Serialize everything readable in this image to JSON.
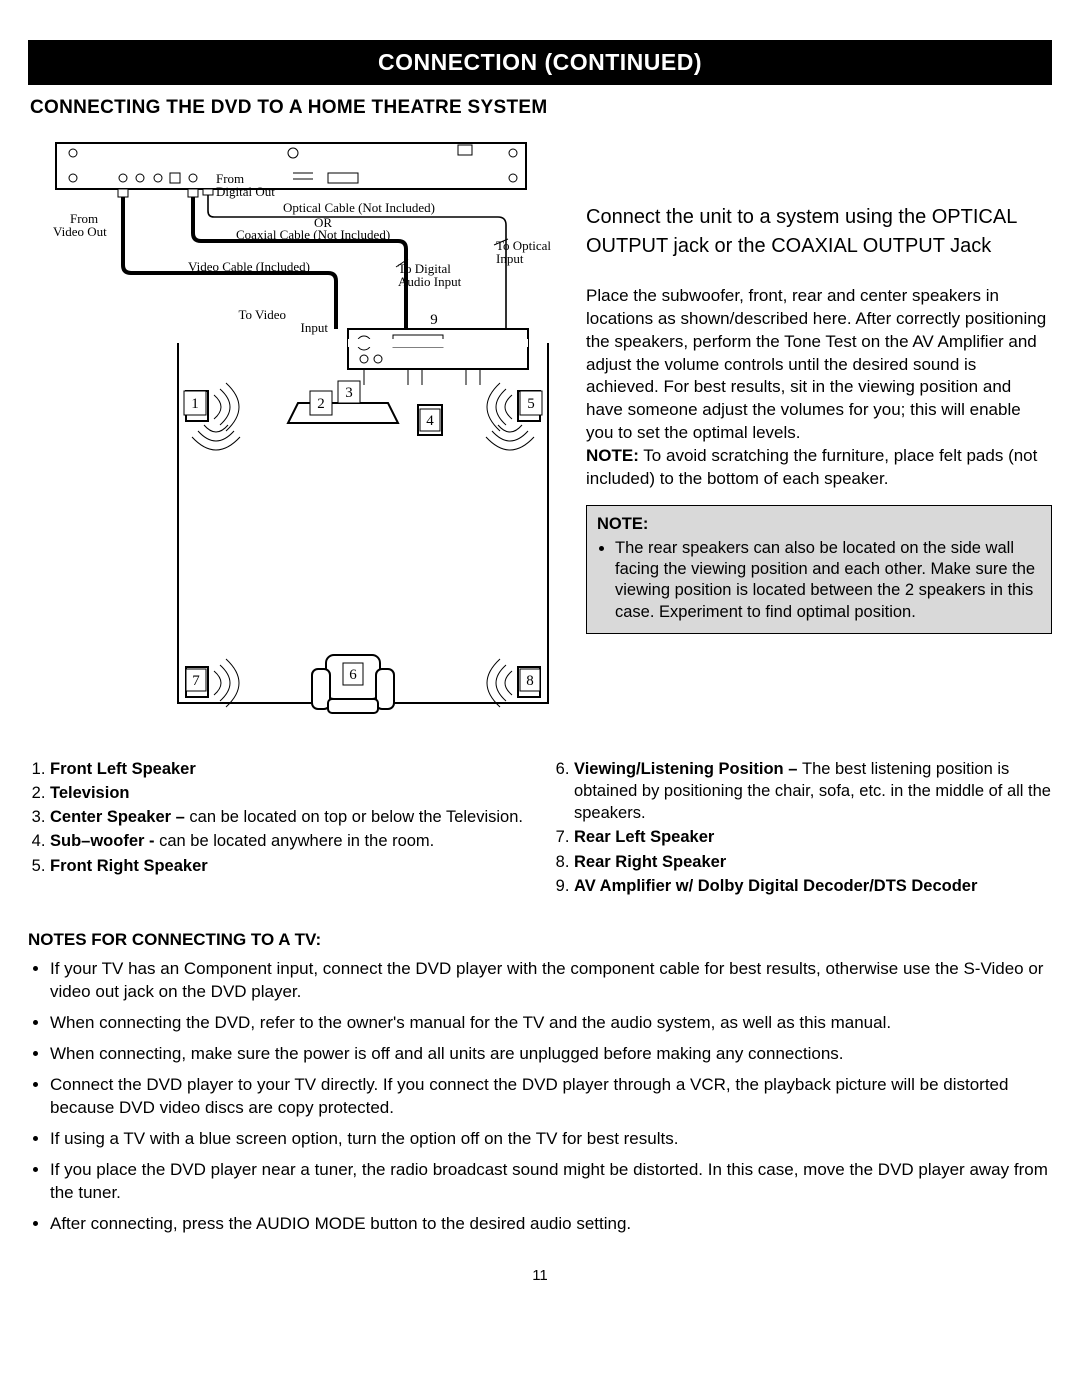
{
  "header": "CONNECTION (CONTINUED)",
  "subtitle": "CONNECTING THE DVD TO A HOME THEATRE SYSTEM",
  "intro": "Connect the unit to a system using the OPTICAL OUTPUT jack or the COAXIAL OUTPUT Jack",
  "placement_text": "Place the subwoofer, front, rear and center speakers in locations as shown/described here. After correctly positioning the speakers, perform the Tone Test on the AV Amplifier and adjust the volume controls until the desired sound is achieved. For best results, sit in the viewing position and have someone adjust the volumes for you; this will enable you to set the optimal levels.",
  "placement_note_label": "NOTE:",
  "placement_note": " To avoid scratching the furniture, place felt pads (not included) to the bottom of each speaker.",
  "note_box": {
    "label": "NOTE:",
    "bullet": "The rear speakers can also be located on the side wall facing the viewing position and each other. Make sure the viewing position is located between the 2 speakers in this case. Experiment to find optimal position."
  },
  "legend": {
    "left": [
      {
        "n": "1.",
        "bold": "Front Left Speaker",
        "rest": ""
      },
      {
        "n": "2.",
        "bold": "Television",
        "rest": ""
      },
      {
        "n": "3.",
        "bold": "Center Speaker – ",
        "rest": "can be located on top or below the Television."
      },
      {
        "n": "4.",
        "bold": "Sub–woofer - ",
        "rest": "can be located anywhere in the room."
      },
      {
        "n": "5.",
        "bold": "Front Right Speaker",
        "rest": ""
      }
    ],
    "right": [
      {
        "n": "6.",
        "bold": "Viewing/Listening Position – ",
        "rest": "The best listening position is obtained by positioning the chair, sofa, etc. in the middle of all the speakers."
      },
      {
        "n": "7.",
        "bold": "Rear Left Speaker",
        "rest": ""
      },
      {
        "n": "8.",
        "bold": "Rear Right Speaker",
        "rest": ""
      },
      {
        "n": "9.",
        "bold": "AV Amplifier w/ Dolby Digital Decoder/DTS Decoder",
        "rest": ""
      }
    ]
  },
  "tv_notes_title": "NOTES FOR CONNECTING TO A TV:",
  "tv_notes": [
    "If your TV has an Component input, connect the DVD player with the component cable for best results, otherwise use the S-Video or video out jack on the DVD player.",
    "When connecting the DVD, refer to the owner's manual for the TV and the audio system, as well as this manual.",
    "When connecting, make sure the power is off and all units are unplugged before making any connections.",
    "Connect the DVD player to your TV directly. If you connect the DVD player through a VCR, the playback picture will be distorted because DVD video discs are copy protected.",
    "If using a TV with a blue screen option, turn the option off on the TV for best results.",
    "If you place the DVD player near a tuner, the radio broadcast sound might be distorted. In this case, move the DVD player away from the tuner.",
    "After connecting, press the AUDIO MODE button to the desired audio setting."
  ],
  "page_number": "11",
  "diagram": {
    "labels": {
      "from_digital_out": "From\nDigital Out",
      "optical_cable": "Optical Cable (Not Included)",
      "or": "OR",
      "coaxial_cable": "Coaxial Cable (Not Included)",
      "from_video_out": "From\nVideo Out",
      "video_cable": "Video Cable (Included)",
      "to_video_input": "To Video\nInput",
      "to_digital_audio": "To Digital\nAudio Input",
      "to_optical_input": "To Optical\nInput"
    },
    "numbers": [
      "1",
      "2",
      "3",
      "4",
      "5",
      "6",
      "7",
      "8",
      "9"
    ],
    "colors": {
      "stroke": "#000000",
      "fill_white": "#ffffff",
      "fill_black": "#000000"
    }
  }
}
